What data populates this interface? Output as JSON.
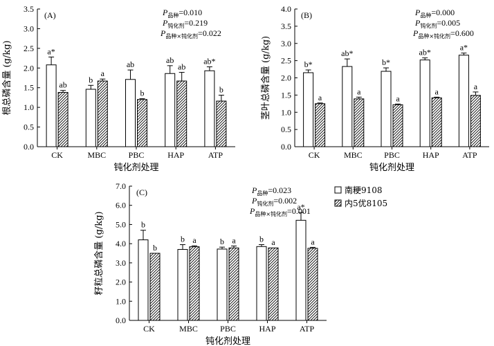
{
  "chart_data": [
    {
      "type": "bar",
      "panel_label": "(A)",
      "categories": [
        "CK",
        "MBC",
        "PBC",
        "HAP",
        "ATP"
      ],
      "xlabel": "钝化剂处理",
      "ylabel": "根总磷含量 (g/kg)",
      "ylim": [
        0,
        3.5
      ],
      "yticks": [
        "0.0",
        "0.5",
        "1.0",
        "1.5",
        "2.0",
        "2.5",
        "3.0",
        "3.5"
      ],
      "pvalues": [
        "P品种=0.010",
        "P钝化剂=0.219",
        "P品种×钝化剂=0.022"
      ],
      "series": [
        {
          "name": "南粳9108",
          "values": [
            2.08,
            1.46,
            1.71,
            1.86,
            1.93
          ],
          "errors": [
            0.2,
            0.1,
            0.24,
            0.2,
            0.1
          ],
          "labels": [
            "a*",
            "b",
            "ab",
            "ab",
            "ab*"
          ]
        },
        {
          "name": "内5优8105",
          "values": [
            1.38,
            1.67,
            1.2,
            1.67,
            1.16
          ],
          "errors": [
            0.05,
            0.05,
            0.02,
            0.22,
            0.15
          ],
          "labels": [
            "ab",
            "a",
            "b",
            "ab",
            "b"
          ]
        }
      ]
    },
    {
      "type": "bar",
      "panel_label": "(B)",
      "categories": [
        "CK",
        "MBC",
        "PBC",
        "HAP",
        "ATP"
      ],
      "xlabel": "钝化剂处理",
      "ylabel": "茎叶总磷含量 (g/kg)",
      "ylim": [
        0,
        4.0
      ],
      "yticks": [
        "0.0",
        "0.5",
        "1.0",
        "1.5",
        "2.0",
        "2.5",
        "3.0",
        "3.5",
        "4.0"
      ],
      "pvalues": [
        "P品种=0.000",
        "P钝化剂=0.005",
        "P品种×钝化剂=0.600"
      ],
      "series": [
        {
          "name": "南粳9108",
          "values": [
            2.15,
            2.33,
            2.19,
            2.52,
            2.66
          ],
          "errors": [
            0.08,
            0.22,
            0.1,
            0.06,
            0.06
          ],
          "labels": [
            "b*",
            "ab*",
            "b*",
            "ab*",
            "a*"
          ]
        },
        {
          "name": "内5优8105",
          "values": [
            1.25,
            1.39,
            1.22,
            1.42,
            1.49
          ],
          "errors": [
            0.02,
            0.05,
            0.02,
            0.02,
            0.1
          ],
          "labels": [
            "a",
            "a",
            "a",
            "a",
            "a"
          ]
        }
      ]
    },
    {
      "type": "bar",
      "panel_label": "(C)",
      "categories": [
        "CK",
        "MBC",
        "PBC",
        "HAP",
        "ATP"
      ],
      "xlabel": "钝化剂处理",
      "ylabel": "籽粒总磷含量 (g/kg)",
      "ylim": [
        0,
        7.0
      ],
      "yticks": [
        "0.0",
        "1.0",
        "2.0",
        "3.0",
        "4.0",
        "5.0",
        "6.0",
        "7.0"
      ],
      "pvalues": [
        "P品种=0.023",
        "P钝化剂=0.002",
        "P品种×钝化剂=0.001"
      ],
      "series": [
        {
          "name": "南粳9108",
          "values": [
            4.2,
            3.7,
            3.72,
            3.85,
            5.22
          ],
          "errors": [
            0.5,
            0.25,
            0.1,
            0.1,
            0.4
          ],
          "labels": [
            "b",
            "b",
            "b",
            "b",
            "a*"
          ]
        },
        {
          "name": "内5优8105",
          "values": [
            3.5,
            3.84,
            3.78,
            3.78,
            3.76
          ],
          "errors": [
            0,
            0.05,
            0.1,
            0,
            0.05
          ],
          "labels": [
            "b",
            "a",
            "a",
            "a",
            "a"
          ]
        }
      ]
    }
  ],
  "legend": {
    "items": [
      "南粳9108",
      "内5优8105"
    ]
  }
}
